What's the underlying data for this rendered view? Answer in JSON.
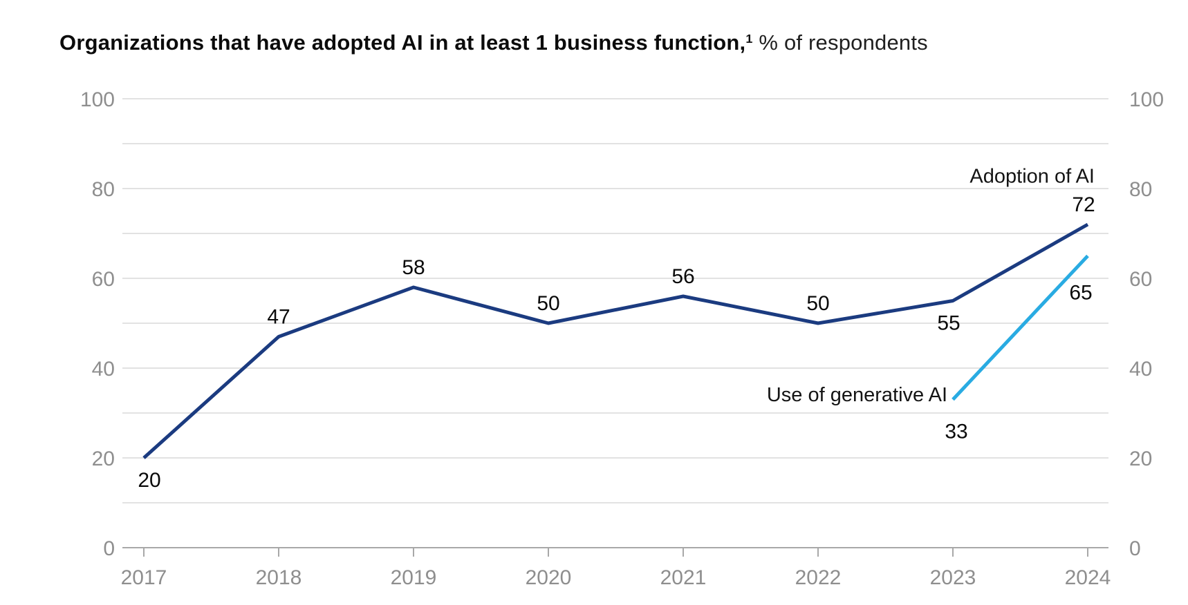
{
  "title": {
    "bold": "Organizations that have adopted AI in at least 1 business function,",
    "superscript": "1",
    "regular": "% of respondents"
  },
  "colors": {
    "adoption_line": "#1b3b80",
    "genai_line": "#29abe2",
    "gridline": "#d8d8d8",
    "axis_line": "#a8a8a8",
    "axis_text": "#8e8e8e",
    "label_text": "#0a0a0a",
    "background": "#ffffff"
  },
  "chart_data": {
    "type": "line",
    "title": "Organizations that have adopted AI in at least 1 business function, % of respondents",
    "x": [
      2017,
      2018,
      2019,
      2020,
      2021,
      2022,
      2023,
      2024
    ],
    "xlabel": "",
    "ylabel": "",
    "ylim": [
      0,
      100
    ],
    "ytick_labels": [
      0,
      20,
      40,
      60,
      80,
      100
    ],
    "gridline_step": 10,
    "grid": true,
    "y_axis_sides": [
      "left",
      "right"
    ],
    "legend_position": "inline-end-annotations",
    "series": [
      {
        "name": "Adoption of AI",
        "color_key": "adoption_line",
        "values": [
          20,
          47,
          58,
          50,
          56,
          50,
          55,
          72
        ],
        "label_placement": [
          {
            "pos": "below",
            "dx": 8
          },
          {
            "pos": "above"
          },
          {
            "pos": "above"
          },
          {
            "pos": "above"
          },
          {
            "pos": "above"
          },
          {
            "pos": "above"
          },
          {
            "pos": "below",
            "dx": -6
          },
          {
            "pos": "above",
            "dx": -6
          }
        ]
      },
      {
        "name": "Use of generative AI",
        "color_key": "genai_line",
        "values": [
          null,
          null,
          null,
          null,
          null,
          null,
          33,
          65
        ],
        "label_placement": [
          null,
          null,
          null,
          null,
          null,
          null,
          {
            "pos": "below",
            "dx": 5,
            "dy": 45
          },
          {
            "pos": "below",
            "dx": -10,
            "dy": 52
          }
        ]
      }
    ],
    "annotations": [
      {
        "text": "Adoption of AI",
        "x": 2024,
        "y_value": 83,
        "anchor": "end",
        "dx": 10
      },
      {
        "text": "Use of generative AI",
        "x": 2023,
        "y_value": 34.3,
        "anchor": "end",
        "dx": -8
      }
    ]
  }
}
